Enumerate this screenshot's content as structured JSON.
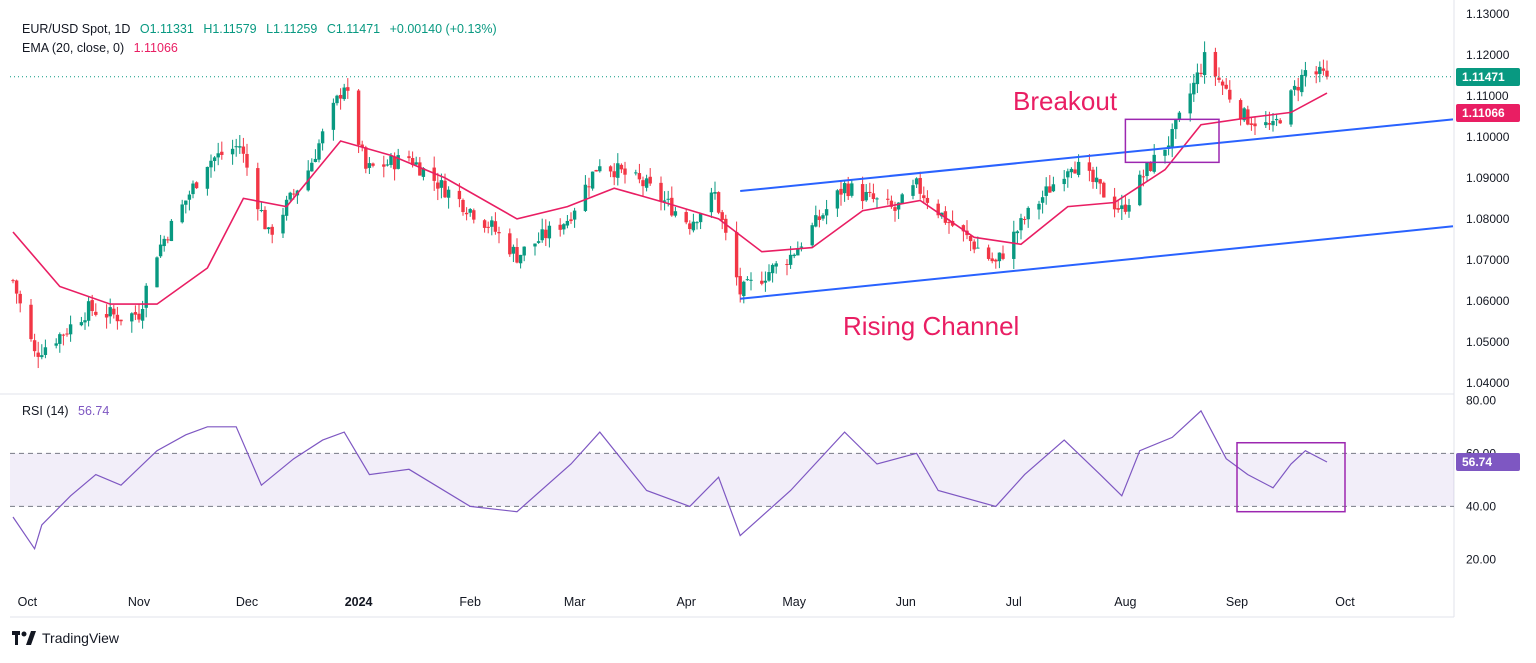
{
  "header": {
    "symbol": "EUR/USD Spot, 1D",
    "open": "O1.11331",
    "high": "H1.11579",
    "low": "L1.11259",
    "close": "C1.11471",
    "change": "+0.00140 (+0.13%)",
    "ema_label": "EMA (20, close, 0)",
    "ema_value": "1.11066"
  },
  "rsi_header": {
    "label": "RSI (14)",
    "value": "56.74"
  },
  "price_tags": {
    "close": "1.11471",
    "ema": "1.11066",
    "rsi": "56.74"
  },
  "annotations": {
    "breakout": "Breakout",
    "channel": "Rising Channel"
  },
  "branding": {
    "logo_text": "TradingView"
  },
  "colors": {
    "up": "#089981",
    "down": "#f23645",
    "ema": "#e91e63",
    "channel": "#2962ff",
    "rsi": "#7e57c2",
    "box": "#9c27b0"
  },
  "chart_data": [
    {
      "type": "candlestick",
      "title": "EUR/USD Spot, 1D",
      "y_ticks": [
        "1.13000",
        "1.12000",
        "1.11000",
        "1.10000",
        "1.09000",
        "1.08000",
        "1.07000",
        "1.06000",
        "1.05000",
        "1.04000"
      ],
      "ylim": [
        1.0375,
        1.1305
      ],
      "x_ticks": [
        "Oct",
        "Nov",
        "Dec",
        "2024",
        "Feb",
        "Mar",
        "Apr",
        "May",
        "Jun",
        "Jul",
        "Aug",
        "Sep",
        "Oct"
      ],
      "date_range": [
        "2023-09-27",
        "2024-09-26"
      ],
      "ema_knots": [
        [
          "2023-09-27",
          1.0768
        ],
        [
          "2023-10-10",
          1.0635
        ],
        [
          "2023-10-24",
          1.0592
        ],
        [
          "2023-11-06",
          1.0592
        ],
        [
          "2023-11-20",
          1.068
        ],
        [
          "2023-11-30",
          1.085
        ],
        [
          "2023-12-12",
          1.083
        ],
        [
          "2023-12-27",
          1.099
        ],
        [
          "2024-01-10",
          1.0955
        ],
        [
          "2024-01-25",
          1.09
        ],
        [
          "2024-02-14",
          1.08
        ],
        [
          "2024-02-28",
          1.083
        ],
        [
          "2024-03-12",
          1.0875
        ],
        [
          "2024-03-26",
          1.084
        ],
        [
          "2024-04-10",
          1.08
        ],
        [
          "2024-04-22",
          1.072
        ],
        [
          "2024-05-06",
          1.073
        ],
        [
          "2024-05-20",
          1.082
        ],
        [
          "2024-06-05",
          1.0845
        ],
        [
          "2024-06-20",
          1.0755
        ],
        [
          "2024-07-03",
          1.0738
        ],
        [
          "2024-07-16",
          1.083
        ],
        [
          "2024-07-29",
          1.084
        ],
        [
          "2024-08-12",
          1.092
        ],
        [
          "2024-08-22",
          1.103
        ],
        [
          "2024-09-05",
          1.1048
        ],
        [
          "2024-09-16",
          1.106
        ],
        [
          "2024-09-26",
          1.1107
        ]
      ],
      "close_knots": [
        [
          "2023-09-27",
          1.065
        ],
        [
          "2023-10-03",
          1.047
        ],
        [
          "2023-10-12",
          1.053
        ],
        [
          "2023-10-18",
          1.058
        ],
        [
          "2023-10-27",
          1.056
        ],
        [
          "2023-11-01",
          1.057
        ],
        [
          "2023-11-06",
          1.072
        ],
        [
          "2023-11-20",
          1.094
        ],
        [
          "2023-11-29",
          1.098
        ],
        [
          "2023-12-07",
          1.076
        ],
        [
          "2023-12-18",
          1.092
        ],
        [
          "2023-12-28",
          1.113
        ],
        [
          "2024-01-03",
          1.092
        ],
        [
          "2024-01-15",
          1.095
        ],
        [
          "2024-01-24",
          1.088
        ],
        [
          "2024-02-07",
          1.078
        ],
        [
          "2024-02-14",
          1.071
        ],
        [
          "2024-02-28",
          1.08
        ],
        [
          "2024-03-08",
          1.094
        ],
        [
          "2024-03-21",
          1.088
        ],
        [
          "2024-04-02",
          1.079
        ],
        [
          "2024-04-09",
          1.086
        ],
        [
          "2024-04-16",
          1.062
        ],
        [
          "2024-04-30",
          1.071
        ],
        [
          "2024-05-15",
          1.088
        ],
        [
          "2024-05-29",
          1.082
        ],
        [
          "2024-06-04",
          1.088
        ],
        [
          "2024-06-12",
          1.08
        ],
        [
          "2024-06-26",
          1.069
        ],
        [
          "2024-07-04",
          1.08
        ],
        [
          "2024-07-17",
          1.094
        ],
        [
          "2024-07-31",
          1.082
        ],
        [
          "2024-08-07",
          1.092
        ],
        [
          "2024-08-14",
          1.1
        ],
        [
          "2024-08-23",
          1.119
        ],
        [
          "2024-09-03",
          1.105
        ],
        [
          "2024-09-11",
          1.102
        ],
        [
          "2024-09-20",
          1.116
        ],
        [
          "2024-09-26",
          1.1147
        ]
      ],
      "channel_upper": [
        [
          "2024-04-16",
          1.0868
        ],
        [
          "2024-10-31",
          1.1043
        ]
      ],
      "channel_lower": [
        [
          "2024-04-16",
          1.0605
        ],
        [
          "2024-10-31",
          1.0782
        ]
      ],
      "breakout_box": {
        "from": "2024-08-01",
        "to": "2024-08-27",
        "y_top": 1.1043,
        "y_bottom": 1.0938
      },
      "last_close": 1.11471,
      "last_ema": 1.11066
    },
    {
      "type": "line",
      "title": "RSI (14)",
      "y_ticks": [
        "80.00",
        "60.00",
        "40.00",
        "20.00"
      ],
      "ylim": [
        13,
        82
      ],
      "band": [
        40,
        60
      ],
      "rsi_knots": [
        [
          "2023-09-27",
          36
        ],
        [
          "2023-10-03",
          24
        ],
        [
          "2023-10-05",
          33
        ],
        [
          "2023-10-13",
          44
        ],
        [
          "2023-10-20",
          52
        ],
        [
          "2023-10-27",
          48
        ],
        [
          "2023-11-06",
          61
        ],
        [
          "2023-11-14",
          67
        ],
        [
          "2023-11-20",
          70
        ],
        [
          "2023-11-28",
          70
        ],
        [
          "2023-12-05",
          48
        ],
        [
          "2023-12-14",
          58
        ],
        [
          "2023-12-22",
          65
        ],
        [
          "2023-12-28",
          68
        ],
        [
          "2024-01-04",
          52
        ],
        [
          "2024-01-15",
          54
        ],
        [
          "2024-02-01",
          40
        ],
        [
          "2024-02-14",
          38
        ],
        [
          "2024-02-29",
          56
        ],
        [
          "2024-03-08",
          68
        ],
        [
          "2024-03-21",
          46
        ],
        [
          "2024-04-02",
          40
        ],
        [
          "2024-04-10",
          51
        ],
        [
          "2024-04-16",
          29
        ],
        [
          "2024-04-30",
          46
        ],
        [
          "2024-05-15",
          68
        ],
        [
          "2024-05-24",
          56
        ],
        [
          "2024-06-04",
          60
        ],
        [
          "2024-06-10",
          46
        ],
        [
          "2024-06-26",
          40
        ],
        [
          "2024-07-04",
          52
        ],
        [
          "2024-07-15",
          65
        ],
        [
          "2024-07-25",
          52
        ],
        [
          "2024-07-31",
          44
        ],
        [
          "2024-08-05",
          61
        ],
        [
          "2024-08-14",
          66
        ],
        [
          "2024-08-22",
          76
        ],
        [
          "2024-08-29",
          58
        ],
        [
          "2024-09-04",
          52
        ],
        [
          "2024-09-11",
          47
        ],
        [
          "2024-09-16",
          56
        ],
        [
          "2024-09-20",
          61
        ],
        [
          "2024-09-26",
          56.74
        ]
      ],
      "highlight_box": {
        "from": "2024-09-01",
        "to": "2024-10-01",
        "y_top": 64,
        "y_bottom": 38
      },
      "last_value": 56.74
    }
  ]
}
